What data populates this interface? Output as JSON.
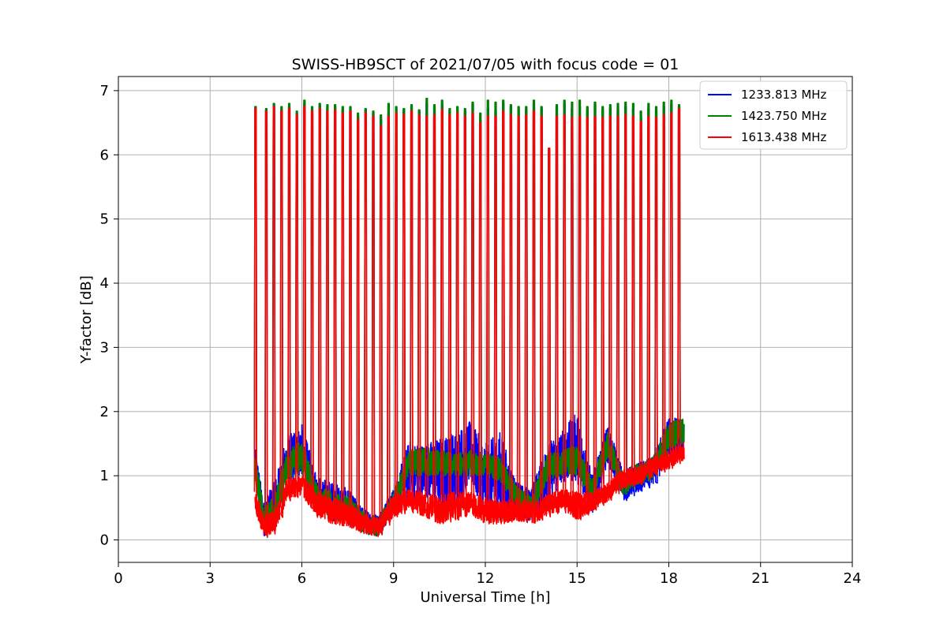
{
  "chart_data": {
    "type": "line",
    "title": "SWISS-HB9SCT of 2021/07/05 with focus code = 01",
    "xlabel": "Universal Time [h]",
    "ylabel": "Y-factor [dB]",
    "xlim": [
      0,
      24
    ],
    "ylim": [
      -0.35,
      7.22
    ],
    "xticks": [
      0,
      3,
      6,
      9,
      12,
      15,
      18,
      21,
      24
    ],
    "yticks": [
      0,
      1,
      2,
      3,
      4,
      5,
      6,
      7
    ],
    "grid": true,
    "legend_position": "top-right",
    "x_start": 4.45,
    "x_end": 18.5,
    "peak_times": [
      4.45,
      4.8,
      5.05,
      5.3,
      5.55,
      5.8,
      6.05,
      6.3,
      6.55,
      6.8,
      7.05,
      7.3,
      7.55,
      7.8,
      8.05,
      8.3,
      8.55,
      8.8,
      9.05,
      9.3,
      9.55,
      9.8,
      10.05,
      10.3,
      10.55,
      10.8,
      11.05,
      11.3,
      11.55,
      11.8,
      12.05,
      12.3,
      12.55,
      12.8,
      13.05,
      13.3,
      13.55,
      13.8,
      14.05,
      14.3,
      14.55,
      14.8,
      15.05,
      15.3,
      15.55,
      15.8,
      16.05,
      16.3,
      16.55,
      16.8,
      17.05,
      17.3,
      17.55,
      17.8,
      18.05,
      18.3
    ],
    "series": [
      {
        "name": "1233.813 MHz",
        "color": "#0000ff",
        "peak_values": [
          6.75,
          6.7,
          6.78,
          6.7,
          6.75,
          6.65,
          6.8,
          6.72,
          6.78,
          6.72,
          6.75,
          6.7,
          6.72,
          6.6,
          6.7,
          6.65,
          6.55,
          6.65,
          6.72,
          6.7,
          6.75,
          6.68,
          6.8,
          6.72,
          6.78,
          6.7,
          6.72,
          6.68,
          6.78,
          6.55,
          6.72,
          6.7,
          6.8,
          6.75,
          6.72,
          6.7,
          6.8,
          6.72,
          6.1,
          6.75,
          6.8,
          6.72,
          6.75,
          6.7,
          6.78,
          6.7,
          6.72,
          6.72,
          6.75,
          6.72,
          6.6,
          6.72,
          6.7,
          6.75,
          6.78,
          6.75
        ],
        "baseline": [
          {
            "t": 4.5,
            "low": 0.95,
            "high": 1.4
          },
          {
            "t": 4.75,
            "low": 0.05,
            "high": 0.6
          },
          {
            "t": 5.1,
            "low": 0.2,
            "high": 0.9
          },
          {
            "t": 5.5,
            "low": 0.85,
            "high": 1.6
          },
          {
            "t": 6.0,
            "low": 1.0,
            "high": 1.8
          },
          {
            "t": 6.5,
            "low": 0.5,
            "high": 1.0
          },
          {
            "t": 7.0,
            "low": 0.3,
            "high": 0.9
          },
          {
            "t": 7.5,
            "low": 0.25,
            "high": 0.8
          },
          {
            "t": 8.0,
            "low": 0.1,
            "high": 0.5
          },
          {
            "t": 8.5,
            "low": 0.05,
            "high": 0.4
          },
          {
            "t": 9.0,
            "low": 0.4,
            "high": 0.8
          },
          {
            "t": 9.5,
            "low": 0.6,
            "high": 1.55
          },
          {
            "t": 10.0,
            "low": 0.7,
            "high": 1.5
          },
          {
            "t": 10.5,
            "low": 0.5,
            "high": 1.6
          },
          {
            "t": 11.0,
            "low": 0.5,
            "high": 1.7
          },
          {
            "t": 11.5,
            "low": 0.9,
            "high": 1.85
          },
          {
            "t": 12.0,
            "low": 0.3,
            "high": 1.5
          },
          {
            "t": 12.5,
            "low": 0.3,
            "high": 1.7
          },
          {
            "t": 13.0,
            "low": 0.35,
            "high": 0.9
          },
          {
            "t": 13.5,
            "low": 0.3,
            "high": 0.8
          },
          {
            "t": 14.0,
            "low": 0.5,
            "high": 1.5
          },
          {
            "t": 14.5,
            "low": 0.9,
            "high": 1.7
          },
          {
            "t": 15.0,
            "low": 0.9,
            "high": 2.0
          },
          {
            "t": 15.5,
            "low": 0.4,
            "high": 1.0
          },
          {
            "t": 16.0,
            "low": 1.2,
            "high": 1.8
          },
          {
            "t": 16.5,
            "low": 0.6,
            "high": 1.1
          },
          {
            "t": 17.0,
            "low": 0.75,
            "high": 1.2
          },
          {
            "t": 17.5,
            "low": 0.85,
            "high": 1.3
          },
          {
            "t": 18.0,
            "low": 1.2,
            "high": 1.95
          },
          {
            "t": 18.5,
            "low": 1.4,
            "high": 1.85
          }
        ]
      },
      {
        "name": "1423.750 MHz",
        "color": "#008000",
        "peak_values": [
          6.75,
          6.72,
          6.8,
          6.75,
          6.8,
          6.68,
          6.85,
          6.75,
          6.8,
          6.78,
          6.78,
          6.75,
          6.75,
          6.65,
          6.72,
          6.68,
          6.62,
          6.8,
          6.75,
          6.72,
          6.78,
          6.7,
          6.88,
          6.78,
          6.85,
          6.72,
          6.75,
          6.72,
          6.82,
          6.65,
          6.85,
          6.82,
          6.85,
          6.78,
          6.75,
          6.75,
          6.85,
          6.75,
          6.1,
          6.78,
          6.85,
          6.82,
          6.85,
          6.75,
          6.82,
          6.75,
          6.78,
          6.8,
          6.82,
          6.8,
          6.68,
          6.8,
          6.75,
          6.82,
          6.85,
          6.78
        ],
        "baseline": [
          {
            "t": 4.5,
            "low": 0.75,
            "high": 1.3
          },
          {
            "t": 4.75,
            "low": 0.02,
            "high": 0.5
          },
          {
            "t": 5.1,
            "low": 0.15,
            "high": 0.7
          },
          {
            "t": 5.5,
            "low": 0.9,
            "high": 1.4
          },
          {
            "t": 6.0,
            "low": 1.0,
            "high": 1.55
          },
          {
            "t": 6.5,
            "low": 0.5,
            "high": 0.85
          },
          {
            "t": 7.0,
            "low": 0.3,
            "high": 0.75
          },
          {
            "t": 7.5,
            "low": 0.25,
            "high": 0.7
          },
          {
            "t": 8.0,
            "low": 0.1,
            "high": 0.45
          },
          {
            "t": 8.5,
            "low": 0.05,
            "high": 0.35
          },
          {
            "t": 9.0,
            "low": 0.45,
            "high": 0.75
          },
          {
            "t": 9.5,
            "low": 1.0,
            "high": 1.4
          },
          {
            "t": 10.0,
            "low": 1.0,
            "high": 1.45
          },
          {
            "t": 10.5,
            "low": 1.0,
            "high": 1.4
          },
          {
            "t": 11.0,
            "low": 1.0,
            "high": 1.35
          },
          {
            "t": 11.5,
            "low": 1.0,
            "high": 1.4
          },
          {
            "t": 12.0,
            "low": 1.0,
            "high": 1.35
          },
          {
            "t": 12.5,
            "low": 0.9,
            "high": 1.3
          },
          {
            "t": 13.0,
            "low": 0.5,
            "high": 0.85
          },
          {
            "t": 13.5,
            "low": 0.35,
            "high": 0.7
          },
          {
            "t": 14.0,
            "low": 0.9,
            "high": 1.35
          },
          {
            "t": 14.5,
            "low": 1.0,
            "high": 1.4
          },
          {
            "t": 15.0,
            "low": 1.0,
            "high": 1.5
          },
          {
            "t": 15.5,
            "low": 0.6,
            "high": 0.95
          },
          {
            "t": 16.0,
            "low": 1.3,
            "high": 1.7
          },
          {
            "t": 16.5,
            "low": 0.7,
            "high": 1.05
          },
          {
            "t": 17.0,
            "low": 0.85,
            "high": 1.2
          },
          {
            "t": 17.5,
            "low": 0.95,
            "high": 1.3
          },
          {
            "t": 18.0,
            "low": 1.4,
            "high": 1.85
          },
          {
            "t": 18.5,
            "low": 1.5,
            "high": 1.9
          }
        ]
      },
      {
        "name": "1613.438 MHz",
        "color": "#ff0000",
        "peak_values": [
          6.72,
          6.68,
          6.75,
          6.68,
          6.72,
          6.62,
          6.75,
          6.68,
          6.72,
          6.68,
          6.7,
          6.65,
          6.68,
          6.55,
          6.65,
          6.6,
          6.45,
          6.6,
          6.65,
          6.62,
          6.68,
          6.62,
          6.6,
          6.62,
          6.7,
          6.62,
          6.65,
          6.6,
          6.65,
          6.5,
          6.6,
          6.6,
          6.68,
          6.62,
          6.6,
          6.62,
          6.68,
          6.6,
          6.1,
          6.6,
          6.62,
          6.58,
          6.6,
          6.58,
          6.6,
          6.58,
          6.6,
          6.6,
          6.62,
          6.6,
          6.52,
          6.6,
          6.58,
          6.62,
          6.65,
          6.72
        ],
        "baseline": [
          {
            "t": 4.5,
            "low": 0.4,
            "high": 0.75
          },
          {
            "t": 4.75,
            "low": 0.05,
            "high": 0.4
          },
          {
            "t": 5.1,
            "low": 0.1,
            "high": 0.45
          },
          {
            "t": 5.5,
            "low": 0.6,
            "high": 0.95
          },
          {
            "t": 6.0,
            "low": 0.7,
            "high": 1.0
          },
          {
            "t": 6.5,
            "low": 0.35,
            "high": 0.75
          },
          {
            "t": 7.0,
            "low": 0.25,
            "high": 0.65
          },
          {
            "t": 7.5,
            "low": 0.2,
            "high": 0.6
          },
          {
            "t": 8.0,
            "low": 0.1,
            "high": 0.4
          },
          {
            "t": 8.5,
            "low": 0.05,
            "high": 0.35
          },
          {
            "t": 9.0,
            "low": 0.35,
            "high": 0.7
          },
          {
            "t": 9.5,
            "low": 0.45,
            "high": 0.8
          },
          {
            "t": 10.0,
            "low": 0.35,
            "high": 0.75
          },
          {
            "t": 10.5,
            "low": 0.25,
            "high": 0.7
          },
          {
            "t": 11.0,
            "low": 0.3,
            "high": 0.75
          },
          {
            "t": 11.5,
            "low": 0.4,
            "high": 0.75
          },
          {
            "t": 12.0,
            "low": 0.25,
            "high": 0.65
          },
          {
            "t": 12.5,
            "low": 0.25,
            "high": 0.6
          },
          {
            "t": 13.0,
            "low": 0.3,
            "high": 0.65
          },
          {
            "t": 13.5,
            "low": 0.25,
            "high": 0.6
          },
          {
            "t": 14.0,
            "low": 0.35,
            "high": 0.7
          },
          {
            "t": 14.5,
            "low": 0.45,
            "high": 0.8
          },
          {
            "t": 15.0,
            "low": 0.3,
            "high": 0.75
          },
          {
            "t": 15.5,
            "low": 0.45,
            "high": 0.75
          },
          {
            "t": 16.0,
            "low": 0.6,
            "high": 0.9
          },
          {
            "t": 16.5,
            "low": 0.8,
            "high": 1.1
          },
          {
            "t": 17.0,
            "low": 0.85,
            "high": 1.15
          },
          {
            "t": 17.5,
            "low": 1.0,
            "high": 1.3
          },
          {
            "t": 18.0,
            "low": 1.1,
            "high": 1.4
          },
          {
            "t": 18.5,
            "low": 1.25,
            "high": 1.55
          }
        ]
      }
    ]
  }
}
